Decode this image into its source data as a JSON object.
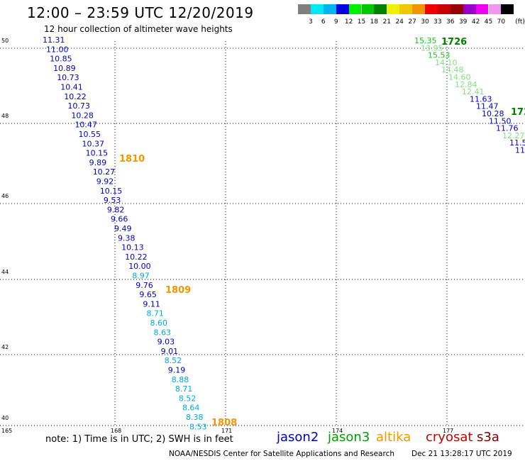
{
  "header": {
    "title": "12:00 – 23:59 UTC 12/20/2019",
    "subtitle": "12 hour collection of altimeter wave heights"
  },
  "colorbar": {
    "colors": [
      "#808080",
      "#00e8f0",
      "#00b4f0",
      "#0000e0",
      "#00f000",
      "#00c800",
      "#008000",
      "#f0f000",
      "#f0c800",
      "#f09600",
      "#f00000",
      "#c80000",
      "#960000",
      "#9600c8",
      "#f000f0",
      "#f096f0",
      "#000000"
    ],
    "labels": [
      "3",
      "6",
      "9",
      "12",
      "15",
      "18",
      "21",
      "24",
      "27",
      "30",
      "33",
      "36",
      "39",
      "42",
      "45",
      "70"
    ],
    "unit": "(ft)"
  },
  "axes": {
    "lat_labels": [
      "50",
      "48",
      "46",
      "44",
      "42",
      "40"
    ],
    "lon_labels": [
      "165",
      "168",
      "171",
      "174",
      "177"
    ]
  },
  "satellites": {
    "jason2": {
      "name": "jason2",
      "color": "#0000c0"
    },
    "jason3": {
      "name": "jason3",
      "color": "#00a000"
    },
    "altika": {
      "name": "altika",
      "color": "#f09600"
    },
    "cryosat": {
      "name": "cryosat",
      "color": "#c80000"
    },
    "s3a": {
      "name": "s3a",
      "color": "#800000"
    }
  },
  "tracks": [
    {
      "id": "track-west",
      "points": [
        {
          "v": "11.31",
          "c": "#0000c0"
        },
        {
          "v": "11.00",
          "c": "#0000c0"
        },
        {
          "v": "10.85",
          "c": "#0000c0"
        },
        {
          "v": "10.89",
          "c": "#0000c0"
        },
        {
          "v": "10.73",
          "c": "#0000c0"
        },
        {
          "v": "10.41",
          "c": "#0000c0"
        },
        {
          "v": "10.22",
          "c": "#0000c0"
        },
        {
          "v": "10.73",
          "c": "#0000c0"
        },
        {
          "v": "10.28",
          "c": "#0000c0"
        },
        {
          "v": "10.47",
          "c": "#0000c0"
        },
        {
          "v": "10.55",
          "c": "#0000c0"
        },
        {
          "v": "10.37",
          "c": "#0000c0"
        },
        {
          "v": "10.15",
          "c": "#0000c0"
        },
        {
          "v": "9.89",
          "c": "#0000c0"
        },
        {
          "v": "10.27",
          "c": "#0000c0"
        },
        {
          "v": "9.92",
          "c": "#0000c0"
        },
        {
          "v": "10.15",
          "c": "#0000c0"
        },
        {
          "v": "9.53",
          "c": "#0000c0"
        },
        {
          "v": "9.82",
          "c": "#0000c0"
        },
        {
          "v": "9.66",
          "c": "#0000c0"
        },
        {
          "v": "9.49",
          "c": "#0000c0"
        },
        {
          "v": "9.38",
          "c": "#0000c0"
        },
        {
          "v": "10.13",
          "c": "#0000c0"
        },
        {
          "v": "10.22",
          "c": "#0000c0"
        },
        {
          "v": "10.00",
          "c": "#0000c0"
        },
        {
          "v": "8.97",
          "c": "#00a8e0"
        },
        {
          "v": "9.76",
          "c": "#0000c0"
        },
        {
          "v": "9.65",
          "c": "#0000c0"
        },
        {
          "v": "9.11",
          "c": "#0000c0"
        },
        {
          "v": "8.71",
          "c": "#00a8e0"
        },
        {
          "v": "8.60",
          "c": "#00a8e0"
        },
        {
          "v": "8.63",
          "c": "#00a8e0"
        },
        {
          "v": "9.03",
          "c": "#0000c0"
        },
        {
          "v": "9.01",
          "c": "#0000c0"
        },
        {
          "v": "8.52",
          "c": "#00a8e0"
        },
        {
          "v": "9.19",
          "c": "#0000c0"
        },
        {
          "v": "8.88",
          "c": "#00a8e0"
        },
        {
          "v": "8.71",
          "c": "#00a8e0"
        },
        {
          "v": "8.52",
          "c": "#00a8e0"
        },
        {
          "v": "8.64",
          "c": "#00a8e0"
        },
        {
          "v": "8.38",
          "c": "#00a8e0"
        },
        {
          "v": "8.53",
          "c": "#00a8e0"
        }
      ],
      "time_labels": [
        "1810",
        "1809",
        "1808"
      ]
    },
    {
      "id": "track-east",
      "points": [
        {
          "v": "15.35",
          "c": "#20c020"
        },
        {
          "v": "13.95",
          "c": "#80e080"
        },
        {
          "v": "15.53",
          "c": "#20c020"
        },
        {
          "v": "14.10",
          "c": "#80e080"
        },
        {
          "v": "14.48",
          "c": "#80e080"
        },
        {
          "v": "14.60",
          "c": "#80e080"
        },
        {
          "v": "12.84",
          "c": "#80e080"
        },
        {
          "v": "12.41",
          "c": "#80e080"
        },
        {
          "v": "11.63",
          "c": "#0000c0"
        },
        {
          "v": "11.47",
          "c": "#0000c0"
        },
        {
          "v": "10.28",
          "c": "#0000c0"
        },
        {
          "v": "11.50",
          "c": "#0000c0"
        },
        {
          "v": "11.76",
          "c": "#0000c0"
        },
        {
          "v": "12.27",
          "c": "#80e080"
        },
        {
          "v": "11.5",
          "c": "#0000c0"
        },
        {
          "v": "11",
          "c": "#0000c0"
        }
      ],
      "time_labels": [
        "1726",
        "172"
      ]
    }
  ],
  "note": "note:  1) Time is in UTC;  2) SWH is in feet",
  "footer": {
    "credit": "NOAA/NESDIS Center for Satellite Applications and Research",
    "date": "Dec 21 13:28:17 UTC 2019"
  }
}
